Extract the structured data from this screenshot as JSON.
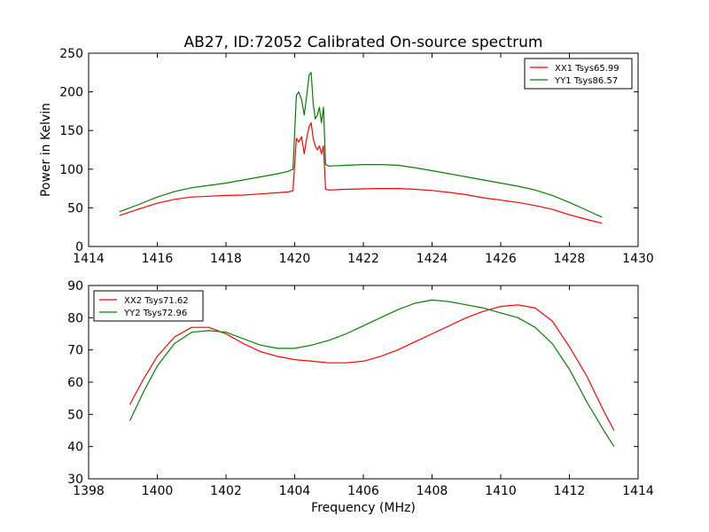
{
  "figure": {
    "title": "AB27, ID:72052 Calibrated On-source spectrum",
    "colors": {
      "red": "#ff0000",
      "green": "#008000"
    }
  },
  "chart_data": [
    {
      "type": "line",
      "panel": "top",
      "title": "AB27, ID:72052 Calibrated On-source spectrum",
      "xlabel": "",
      "ylabel": "Power in Kelvin",
      "xlim": [
        1414,
        1430
      ],
      "ylim": [
        0,
        250
      ],
      "xticks": [
        "1414",
        "1416",
        "1418",
        "1420",
        "1422",
        "1424",
        "1426",
        "1428",
        "1430"
      ],
      "yticks": [
        "0",
        "50",
        "100",
        "150",
        "200",
        "250"
      ],
      "grid": false,
      "legend_position": "top-right",
      "series": [
        {
          "name": "XX1 Tsys65.99",
          "color": "#ff0000",
          "x": [
            1414.9,
            1415.5,
            1416.0,
            1416.5,
            1417.0,
            1417.5,
            1418.0,
            1418.5,
            1419.0,
            1419.5,
            1419.8,
            1419.95,
            1420.05,
            1420.12,
            1420.2,
            1420.28,
            1420.35,
            1420.42,
            1420.48,
            1420.54,
            1420.6,
            1420.66,
            1420.72,
            1420.78,
            1420.84,
            1420.9,
            1421.0,
            1421.5,
            1422.0,
            1422.5,
            1423.0,
            1423.5,
            1424.0,
            1424.5,
            1425.0,
            1425.5,
            1426.0,
            1426.5,
            1427.0,
            1427.5,
            1428.0,
            1428.5,
            1428.95
          ],
          "y": [
            40,
            49,
            56,
            61,
            64,
            65,
            66,
            66.5,
            68,
            69.5,
            70.5,
            72,
            140,
            135,
            142,
            120,
            140,
            155,
            160,
            140,
            130,
            125,
            130,
            120,
            130,
            74,
            73,
            74,
            74.5,
            75,
            75,
            74,
            72.5,
            70,
            67,
            63,
            60,
            57,
            53,
            48,
            41,
            35,
            30
          ]
        },
        {
          "name": "YY1 Tsys86.57",
          "color": "#008000",
          "x": [
            1414.9,
            1415.5,
            1416.0,
            1416.5,
            1417.0,
            1417.5,
            1418.0,
            1418.5,
            1419.0,
            1419.5,
            1419.8,
            1419.95,
            1420.05,
            1420.12,
            1420.2,
            1420.28,
            1420.35,
            1420.42,
            1420.48,
            1420.54,
            1420.6,
            1420.66,
            1420.72,
            1420.78,
            1420.84,
            1420.9,
            1421.0,
            1421.5,
            1422.0,
            1422.5,
            1423.0,
            1423.5,
            1424.0,
            1424.5,
            1425.0,
            1425.5,
            1426.0,
            1426.5,
            1427.0,
            1427.5,
            1428.0,
            1428.5,
            1428.95
          ],
          "y": [
            45,
            55,
            64,
            71,
            76,
            79,
            82,
            86,
            90,
            94,
            97,
            100,
            195,
            200,
            190,
            170,
            195,
            222,
            225,
            185,
            165,
            170,
            180,
            160,
            180,
            106,
            104,
            105,
            106,
            106,
            105,
            102,
            98,
            94,
            90,
            86,
            82,
            78,
            73,
            66,
            57,
            47,
            38
          ]
        }
      ]
    },
    {
      "type": "line",
      "panel": "bottom",
      "title": "",
      "xlabel": "Frequency (MHz)",
      "ylabel": "",
      "xlim": [
        1398,
        1414
      ],
      "ylim": [
        30,
        90
      ],
      "xticks": [
        "1398",
        "1400",
        "1402",
        "1404",
        "1406",
        "1408",
        "1410",
        "1412",
        "1414"
      ],
      "yticks": [
        "30",
        "40",
        "50",
        "60",
        "70",
        "80",
        "90"
      ],
      "grid": false,
      "legend_position": "top-left",
      "series": [
        {
          "name": "XX2 Tsys71.62",
          "color": "#ff0000",
          "x": [
            1399.2,
            1399.6,
            1400.0,
            1400.5,
            1401.0,
            1401.5,
            1402.0,
            1402.5,
            1403.0,
            1403.5,
            1404.0,
            1404.5,
            1405.0,
            1405.5,
            1406.0,
            1406.5,
            1407.0,
            1407.5,
            1408.0,
            1408.5,
            1409.0,
            1409.5,
            1410.0,
            1410.5,
            1411.0,
            1411.5,
            1412.0,
            1412.5,
            1413.0,
            1413.3
          ],
          "y": [
            53,
            61,
            68,
            74,
            77,
            77,
            75,
            72,
            69.5,
            68,
            67,
            66.5,
            66,
            66,
            66.5,
            68,
            70,
            72.5,
            75,
            77.5,
            80,
            82,
            83.5,
            84,
            83,
            79,
            71,
            62,
            51,
            45
          ]
        },
        {
          "name": "YY2 Tsys72.96",
          "color": "#008000",
          "x": [
            1399.2,
            1399.6,
            1400.0,
            1400.5,
            1401.0,
            1401.5,
            1402.0,
            1402.5,
            1403.0,
            1403.5,
            1404.0,
            1404.5,
            1405.0,
            1405.5,
            1406.0,
            1406.5,
            1407.0,
            1407.5,
            1408.0,
            1408.5,
            1409.0,
            1409.5,
            1410.0,
            1410.5,
            1411.0,
            1411.5,
            1412.0,
            1412.5,
            1413.0,
            1413.3
          ],
          "y": [
            48,
            57,
            65,
            72,
            75.5,
            76,
            75.5,
            73.5,
            71.5,
            70.5,
            70.5,
            71.5,
            73,
            75,
            77.5,
            80,
            82.5,
            84.5,
            85.5,
            85,
            84,
            83,
            81.5,
            80,
            77,
            72,
            64,
            54,
            45,
            40
          ]
        }
      ]
    }
  ]
}
